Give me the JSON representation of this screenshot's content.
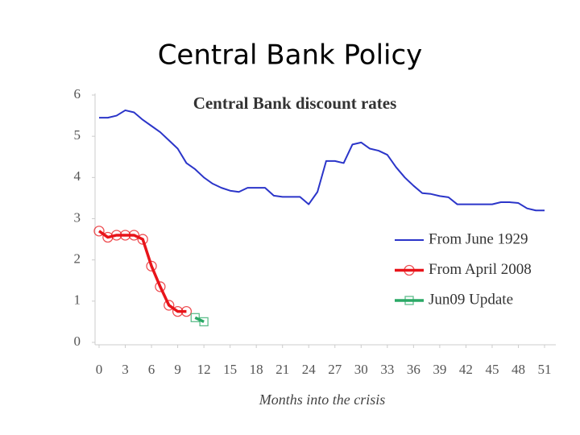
{
  "slide_title": "Central Bank Policy",
  "chart_data": {
    "type": "line",
    "title": "Central Bank discount rates",
    "xlabel": "Months into the crisis",
    "x": [
      0,
      1,
      2,
      3,
      4,
      5,
      6,
      7,
      8,
      9,
      10,
      11,
      12,
      13,
      14,
      15,
      16,
      17,
      18,
      19,
      20,
      21,
      22,
      23,
      24,
      25,
      26,
      27,
      28,
      29,
      30,
      31,
      32,
      33,
      34,
      35,
      36,
      37,
      38,
      39,
      40,
      41,
      42,
      43,
      44,
      45,
      46,
      47,
      48,
      49,
      50,
      51
    ],
    "series": [
      {
        "name": "From June 1929",
        "color": "#2b35c9",
        "marker": "none",
        "values": [
          5.45,
          5.45,
          5.5,
          5.63,
          5.58,
          5.4,
          5.25,
          5.1,
          4.9,
          4.7,
          4.35,
          4.2,
          4.0,
          3.85,
          3.75,
          3.68,
          3.65,
          3.75,
          3.75,
          3.75,
          3.56,
          3.53,
          3.53,
          3.53,
          3.35,
          3.65,
          4.4,
          4.4,
          4.35,
          4.8,
          4.85,
          4.7,
          4.65,
          4.55,
          4.25,
          4.0,
          3.8,
          3.62,
          3.6,
          3.55,
          3.52,
          3.35,
          3.35,
          3.35,
          3.35,
          3.35,
          3.4,
          3.4,
          3.38,
          3.25,
          3.2,
          3.2
        ]
      },
      {
        "name": "From April 2008",
        "color": "#e8141a",
        "marker": "circle",
        "values": [
          2.7,
          2.55,
          2.6,
          2.6,
          2.6,
          2.5,
          1.85,
          1.35,
          0.9,
          0.75,
          0.75,
          null,
          null,
          null,
          null,
          null,
          null,
          null,
          null,
          null,
          null,
          null,
          null,
          null,
          null,
          null,
          null,
          null,
          null,
          null,
          null,
          null,
          null,
          null,
          null,
          null,
          null,
          null,
          null,
          null,
          null,
          null,
          null,
          null,
          null,
          null,
          null,
          null,
          null,
          null,
          null,
          null
        ]
      },
      {
        "name": "Jun09 Update",
        "color": "#2aa866",
        "marker": "square",
        "values": [
          null,
          null,
          null,
          null,
          null,
          null,
          null,
          null,
          null,
          null,
          null,
          0.6,
          0.5,
          null,
          null,
          null,
          null,
          null,
          null,
          null,
          null,
          null,
          null,
          null,
          null,
          null,
          null,
          null,
          null,
          null,
          null,
          null,
          null,
          null,
          null,
          null,
          null,
          null,
          null,
          null,
          null,
          null,
          null,
          null,
          null,
          null,
          null,
          null,
          null,
          null,
          null,
          null
        ]
      }
    ],
    "xlim": [
      0,
      51
    ],
    "xticks": [
      0,
      3,
      6,
      9,
      12,
      15,
      18,
      21,
      24,
      27,
      30,
      33,
      36,
      39,
      42,
      45,
      48,
      51
    ],
    "ylim": [
      0,
      6
    ],
    "yticks": [
      0,
      1,
      2,
      3,
      4,
      5,
      6
    ],
    "legend": "right",
    "grid": false
  }
}
